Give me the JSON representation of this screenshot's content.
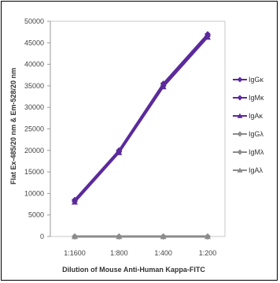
{
  "chart_data": {
    "type": "line",
    "title": "",
    "xlabel": "Dilution of Mouse Anti-Human Kappa-FITC",
    "ylabel": "Flat Ex-485/20 nm & Em-528/20 nm",
    "categories": [
      "1:1600",
      "1:800",
      "1:400",
      "1:200"
    ],
    "y_ticks": [
      0,
      5000,
      10000,
      15000,
      20000,
      25000,
      30000,
      35000,
      40000,
      45000,
      50000
    ],
    "y_tick_labels": [
      "0",
      "5000",
      "10000",
      "15000",
      "20000",
      "25000",
      "30000",
      "35000",
      "40000",
      "45000",
      "50000"
    ],
    "ylim": [
      0,
      50000
    ],
    "grid": false,
    "legend_position": "right",
    "series": [
      {
        "name": "IgGκ",
        "values": [
          8500,
          20000,
          35500,
          47000
        ],
        "color": "#5b2a9b",
        "marker": "diamond"
      },
      {
        "name": "IgMκ",
        "values": [
          8200,
          19700,
          35000,
          46600
        ],
        "color": "#5b2a9b",
        "marker": "diamond"
      },
      {
        "name": "IgAκ",
        "values": [
          8000,
          19500,
          34800,
          46300
        ],
        "color": "#5b2a9b",
        "marker": "triangle"
      },
      {
        "name": "IgGλ",
        "values": [
          0,
          0,
          0,
          0
        ],
        "color": "#8c8c8c",
        "marker": "diamond"
      },
      {
        "name": "IgMλ",
        "values": [
          0,
          0,
          0,
          0
        ],
        "color": "#8c8c8c",
        "marker": "diamond"
      },
      {
        "name": "IgAλ",
        "values": [
          0,
          0,
          0,
          0
        ],
        "color": "#8c8c8c",
        "marker": "triangle"
      }
    ]
  }
}
